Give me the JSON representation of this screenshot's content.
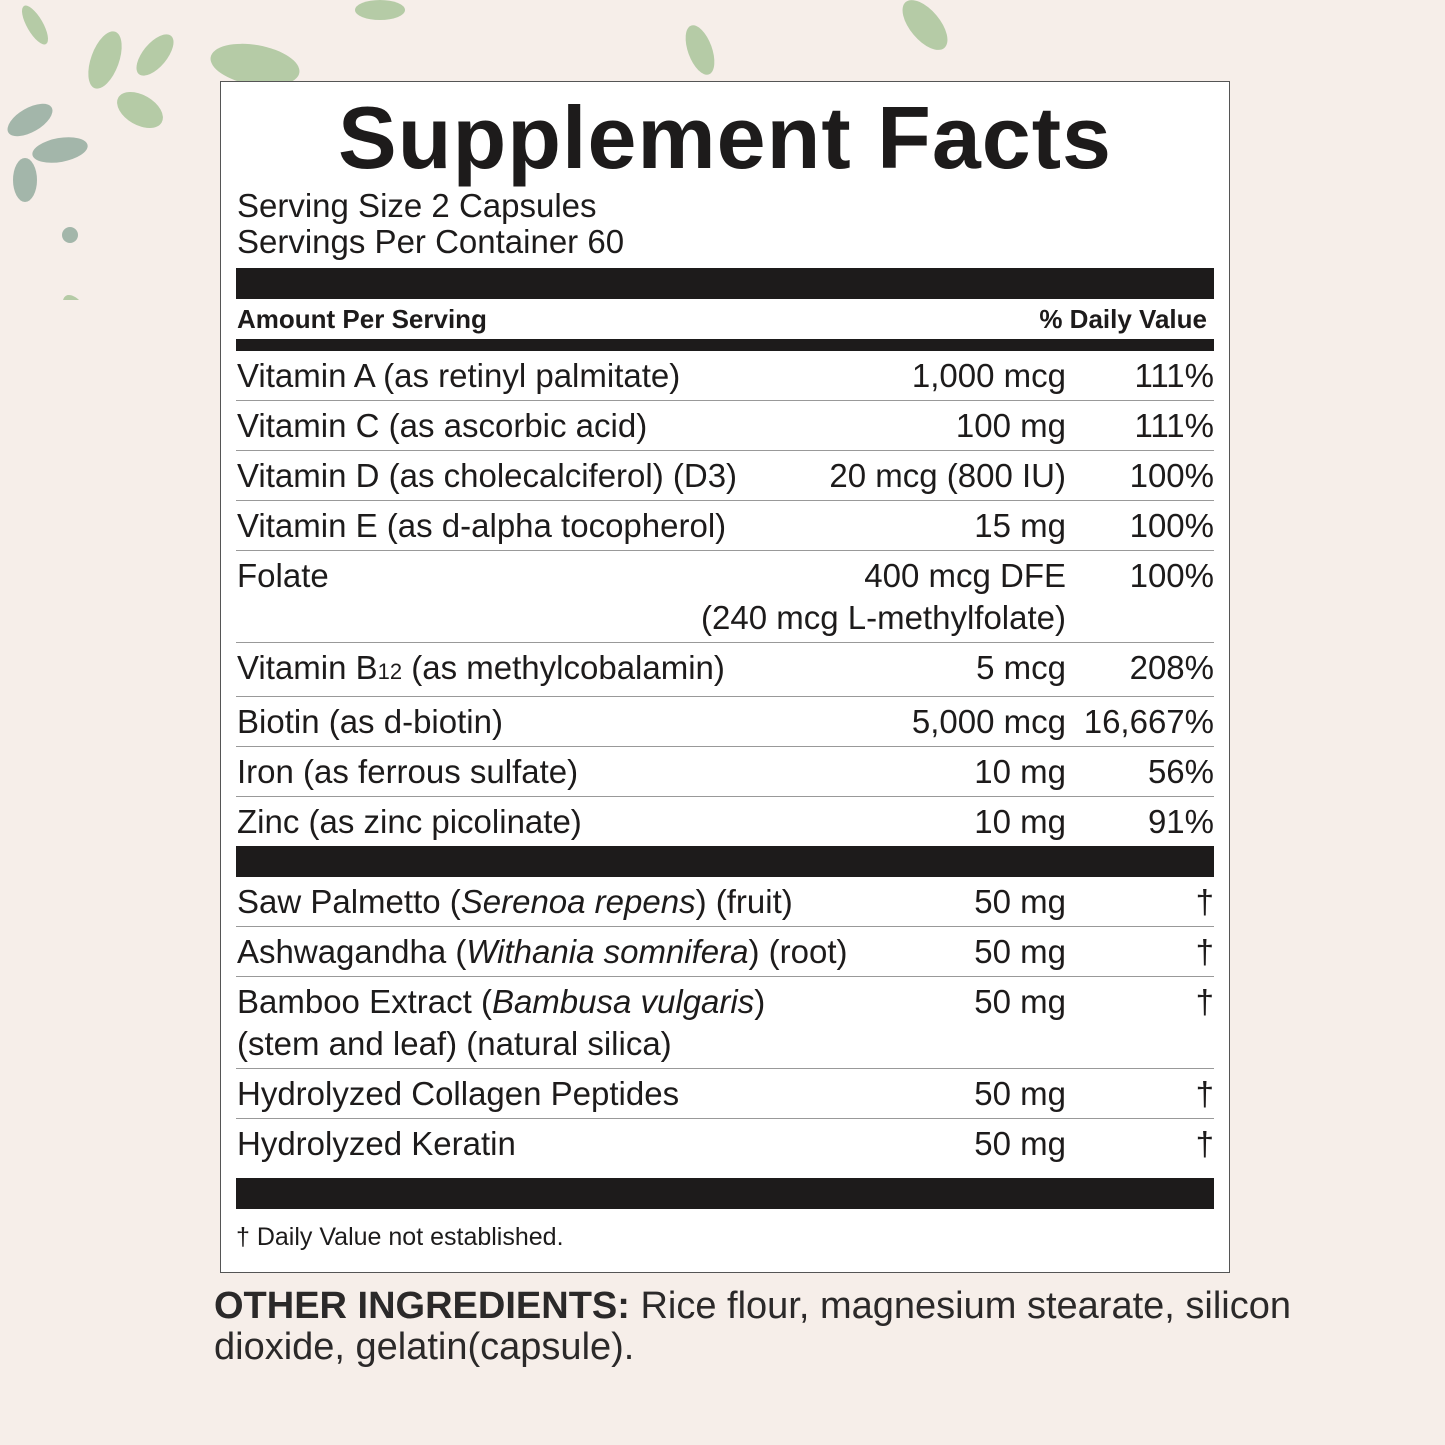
{
  "title": "Supplement Facts",
  "serving_size": "Serving Size 2 Capsules",
  "servings_per_container": "Servings Per Container 60",
  "header": {
    "amount": "Amount Per Serving",
    "dv": "% Daily Value"
  },
  "vitamins": [
    {
      "name": [
        {
          "t": "Vitamin A (as retinyl palmitate)"
        }
      ],
      "amount": [
        "1,000 mcg"
      ],
      "dv": "111%"
    },
    {
      "name": [
        {
          "t": "Vitamin C (as ascorbic acid)"
        }
      ],
      "amount": [
        "100 mg"
      ],
      "dv": "111%"
    },
    {
      "name": [
        {
          "t": "Vitamin D (as cholecalciferol) (D3)"
        }
      ],
      "amount": [
        "20 mcg (800 IU)"
      ],
      "dv": "100%"
    },
    {
      "name": [
        {
          "t": "Vitamin E (as d-alpha tocopherol)"
        }
      ],
      "amount": [
        "15 mg"
      ],
      "dv": "100%"
    },
    {
      "name": [
        {
          "t": "Folate"
        }
      ],
      "amount": [
        "400 mcg DFE",
        "(240 mcg L-methylfolate)"
      ],
      "dv": "100%"
    },
    {
      "name": [
        {
          "t": "Vitamin B"
        },
        {
          "t": "12",
          "sub": true
        },
        {
          "t": " (as methylcobalamin)"
        }
      ],
      "amount": [
        "5 mcg"
      ],
      "dv": "208%"
    },
    {
      "name": [
        {
          "t": "Biotin (as d-biotin)"
        }
      ],
      "amount": [
        "5,000 mcg"
      ],
      "dv": "16,667%"
    },
    {
      "name": [
        {
          "t": "Iron (as ferrous sulfate)"
        }
      ],
      "amount": [
        "10 mg"
      ],
      "dv": "56%"
    },
    {
      "name": [
        {
          "t": "Zinc (as zinc picolinate)"
        }
      ],
      "amount": [
        "10 mg"
      ],
      "dv": "91%"
    }
  ],
  "herbals": [
    {
      "name": [
        {
          "t": "Saw Palmetto ("
        },
        {
          "t": "Serenoa repens",
          "i": true
        },
        {
          "t": ") (fruit)"
        }
      ],
      "amount": [
        "50 mg"
      ],
      "dv": "†"
    },
    {
      "name": [
        {
          "t": "Ashwagandha ("
        },
        {
          "t": "Withania somnifera",
          "i": true
        },
        {
          "t": ") (root)"
        }
      ],
      "amount": [
        "50 mg"
      ],
      "dv": "†"
    },
    {
      "name": [
        {
          "t": "Bamboo Extract ("
        },
        {
          "t": "Bambusa vulgaris",
          "i": true
        },
        {
          "t": ")"
        },
        {
          "br": true
        },
        {
          "t": "(stem and leaf) (natural silica)"
        }
      ],
      "amount": [
        "50 mg"
      ],
      "dv": "†"
    },
    {
      "name": [
        {
          "t": "Hydrolyzed Collagen Peptides"
        }
      ],
      "amount": [
        "50 mg"
      ],
      "dv": "†"
    },
    {
      "name": [
        {
          "t": "Hydrolyzed Keratin"
        }
      ],
      "amount": [
        "50 mg"
      ],
      "dv": "†"
    }
  ],
  "footnote": "† Daily Value not established.",
  "other_ingredients": {
    "label": "OTHER INGREDIENTS:",
    "text": " Rice flour, magnesium stearate, silicon dioxide, gelatin(capsule)."
  },
  "colors": {
    "background": "#f6eee9",
    "ink": "#1d1b1b",
    "leaf": "#a9c49a"
  }
}
